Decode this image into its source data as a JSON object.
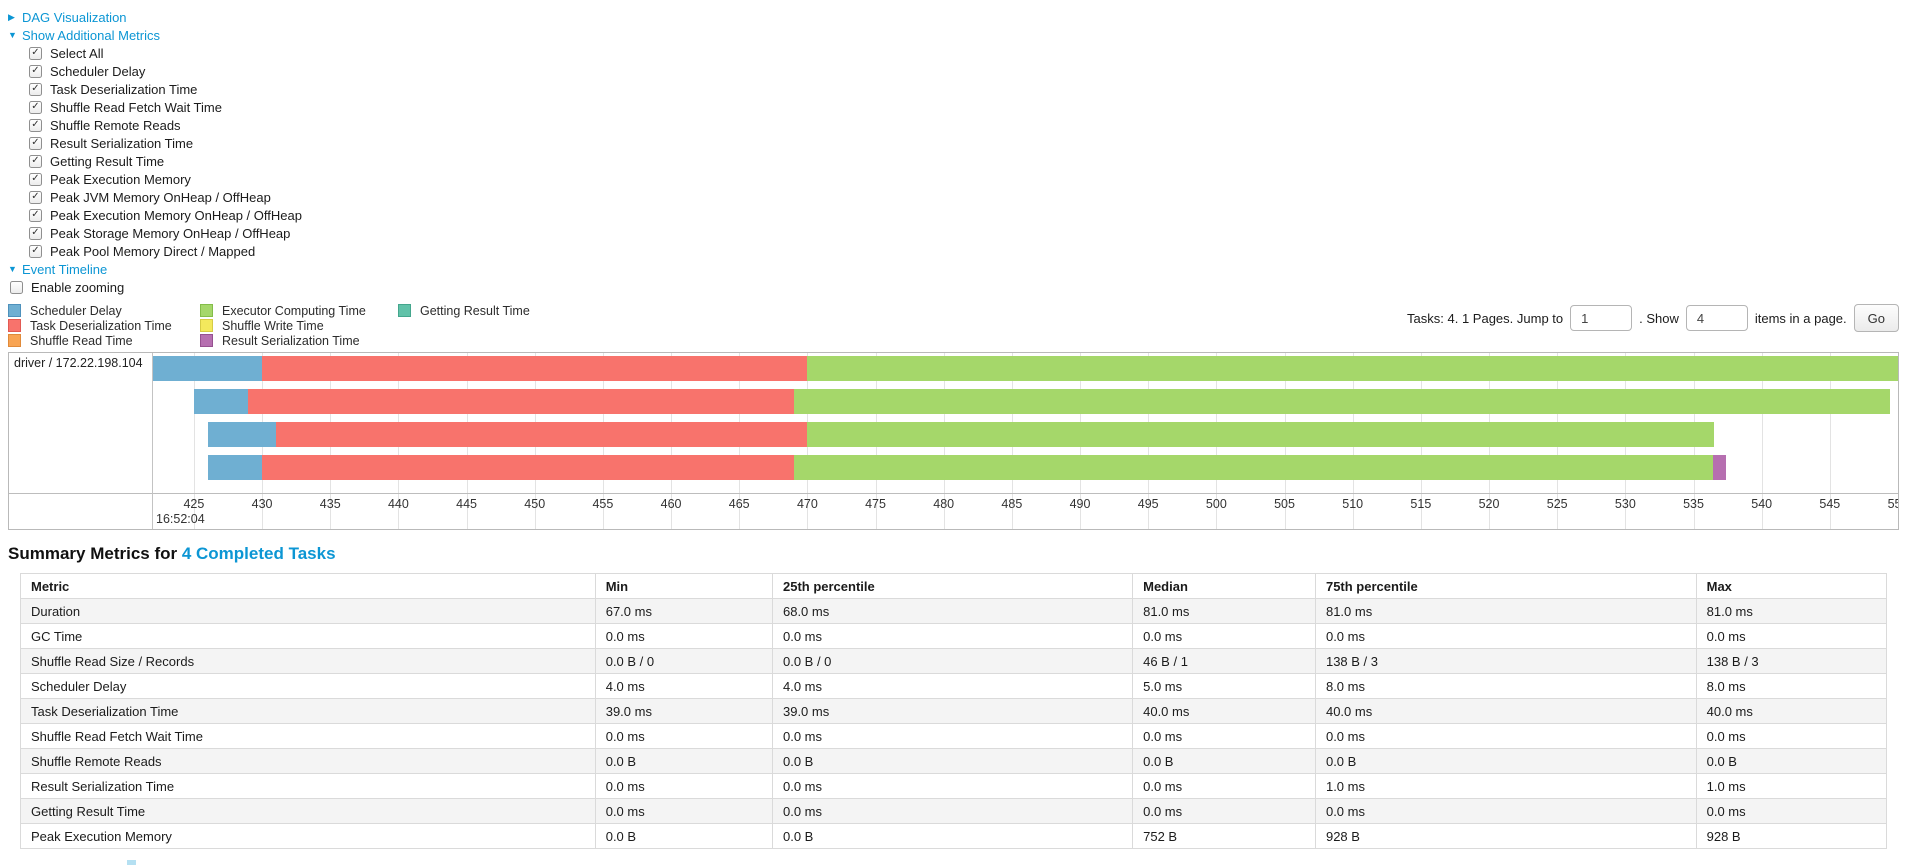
{
  "sections": {
    "dag": {
      "label": "DAG Visualization",
      "arrow": "collapsed"
    },
    "additional_metrics": {
      "label": "Show Additional Metrics",
      "arrow": "expanded"
    },
    "event_timeline": {
      "label": "Event Timeline",
      "arrow": "expanded"
    }
  },
  "metric_checkboxes": [
    {
      "label": "Select All",
      "checked": true
    },
    {
      "label": "Scheduler Delay",
      "checked": true
    },
    {
      "label": "Task Deserialization Time",
      "checked": true
    },
    {
      "label": "Shuffle Read Fetch Wait Time",
      "checked": true
    },
    {
      "label": "Shuffle Remote Reads",
      "checked": true
    },
    {
      "label": "Result Serialization Time",
      "checked": true
    },
    {
      "label": "Getting Result Time",
      "checked": true
    },
    {
      "label": "Peak Execution Memory",
      "checked": true
    },
    {
      "label": "Peak JVM Memory OnHeap / OffHeap",
      "checked": true
    },
    {
      "label": "Peak Execution Memory OnHeap / OffHeap",
      "checked": true
    },
    {
      "label": "Peak Storage Memory OnHeap / OffHeap",
      "checked": true
    },
    {
      "label": "Peak Pool Memory Direct / Mapped",
      "checked": true
    }
  ],
  "enable_zooming": {
    "label": "Enable zooming",
    "checked": false
  },
  "legend": {
    "columns": [
      [
        {
          "label": "Scheduler Delay",
          "color": "#6FAFD2",
          "border": "#4E91BC"
        },
        {
          "label": "Task Deserialization Time",
          "color": "#F8736C",
          "border": "#E25A53"
        },
        {
          "label": "Shuffle Read Time",
          "color": "#F8A453",
          "border": "#E08A3A"
        }
      ],
      [
        {
          "label": "Executor Computing Time",
          "color": "#A5D76A",
          "border": "#84BD49"
        },
        {
          "label": "Shuffle Write Time",
          "color": "#F3E95D",
          "border": "#D6CC45"
        },
        {
          "label": "Result Serialization Time",
          "color": "#B66FB0",
          "border": "#965190"
        }
      ],
      [
        {
          "label": "Getting Result Time",
          "color": "#61C2A9",
          "border": "#44A68D"
        }
      ]
    ]
  },
  "pagination": {
    "text_before": "Tasks: 4. 1 Pages. Jump to",
    "jump_value": "1",
    "text_mid": ". Show",
    "show_value": "4",
    "text_after": "items in a page.",
    "go_label": "Go"
  },
  "chart_data": {
    "type": "timeline",
    "group": "driver / 172.22.198.104",
    "x_axis": {
      "min": 422,
      "max": 550,
      "tick_start": 425,
      "tick_step": 5,
      "major_label": "16:52:04",
      "unit": "ms within second 16:52:04"
    },
    "palette": {
      "scheduler-delay": "#6FAFD2",
      "task-deserialization": "#F8736C",
      "shuffle-read": "#F8A453",
      "executor-computing": "#A5D76A",
      "shuffle-write": "#F3E95D",
      "result-serialization": "#B66FB0",
      "getting-result": "#61C2A9"
    },
    "tasks": [
      {
        "segments": [
          {
            "kind": "scheduler-delay",
            "start": 422,
            "end": 430
          },
          {
            "kind": "task-deserialization",
            "start": 430,
            "end": 470
          },
          {
            "kind": "executor-computing",
            "start": 470,
            "end": 550
          }
        ]
      },
      {
        "segments": [
          {
            "kind": "scheduler-delay",
            "start": 425,
            "end": 429
          },
          {
            "kind": "task-deserialization",
            "start": 429,
            "end": 469
          },
          {
            "kind": "executor-computing",
            "start": 469,
            "end": 549.4
          }
        ]
      },
      {
        "segments": [
          {
            "kind": "scheduler-delay",
            "start": 426,
            "end": 431
          },
          {
            "kind": "task-deserialization",
            "start": 431,
            "end": 470
          },
          {
            "kind": "executor-computing",
            "start": 470,
            "end": 536.5
          }
        ]
      },
      {
        "segments": [
          {
            "kind": "scheduler-delay",
            "start": 426,
            "end": 430
          },
          {
            "kind": "task-deserialization",
            "start": 430,
            "end": 469
          },
          {
            "kind": "executor-computing",
            "start": 469,
            "end": 536.4
          },
          {
            "kind": "result-serialization",
            "start": 536.4,
            "end": 537.4
          }
        ]
      }
    ]
  },
  "summary": {
    "title_prefix": "Summary Metrics for ",
    "title_link": "4 Completed Tasks",
    "columns": [
      "Metric",
      "Min",
      "25th percentile",
      "Median",
      "75th percentile",
      "Max"
    ],
    "col_widths_pct": [
      30.8,
      9.5,
      19.3,
      9.8,
      20.4,
      10.2
    ],
    "rows": [
      {
        "metric": "Duration",
        "values": [
          "67.0 ms",
          "68.0 ms",
          "81.0 ms",
          "81.0 ms",
          "81.0 ms"
        ]
      },
      {
        "metric": "GC Time",
        "values": [
          "0.0 ms",
          "0.0 ms",
          "0.0 ms",
          "0.0 ms",
          "0.0 ms"
        ]
      },
      {
        "metric": "Shuffle Read Size / Records",
        "values": [
          "0.0 B / 0",
          "0.0 B / 0",
          "46 B / 1",
          "138 B / 3",
          "138 B / 3"
        ]
      },
      {
        "metric": "Scheduler Delay",
        "values": [
          "4.0 ms",
          "4.0 ms",
          "5.0 ms",
          "8.0 ms",
          "8.0 ms"
        ]
      },
      {
        "metric": "Task Deserialization Time",
        "values": [
          "39.0 ms",
          "39.0 ms",
          "40.0 ms",
          "40.0 ms",
          "40.0 ms"
        ]
      },
      {
        "metric": "Shuffle Read Fetch Wait Time",
        "values": [
          "0.0 ms",
          "0.0 ms",
          "0.0 ms",
          "0.0 ms",
          "0.0 ms"
        ]
      },
      {
        "metric": "Shuffle Remote Reads",
        "values": [
          "0.0 B",
          "0.0 B",
          "0.0 B",
          "0.0 B",
          "0.0 B"
        ]
      },
      {
        "metric": "Result Serialization Time",
        "values": [
          "0.0 ms",
          "0.0 ms",
          "0.0 ms",
          "1.0 ms",
          "1.0 ms"
        ]
      },
      {
        "metric": "Getting Result Time",
        "values": [
          "0.0 ms",
          "0.0 ms",
          "0.0 ms",
          "0.0 ms",
          "0.0 ms"
        ]
      },
      {
        "metric": "Peak Execution Memory",
        "values": [
          "0.0 B",
          "0.0 B",
          "752 B",
          "928 B",
          "928 B"
        ]
      }
    ]
  },
  "colors": {
    "link": "#0c96d4"
  }
}
